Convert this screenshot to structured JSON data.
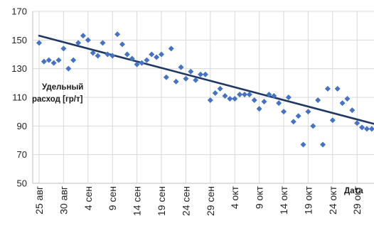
{
  "chart_data": {
    "type": "scatter",
    "title": "",
    "xlabel": "Дата",
    "ylabel": "Удельный расход [гр/т]",
    "ylim": [
      50,
      170
    ],
    "y_ticks": [
      "50",
      "70",
      "90",
      "110",
      "130",
      "150",
      "170"
    ],
    "x_ticks": [
      {
        "day": 0,
        "label": "25 авг"
      },
      {
        "day": 5,
        "label": "30 авг"
      },
      {
        "day": 10,
        "label": "4 сен"
      },
      {
        "day": 15,
        "label": "9 сен"
      },
      {
        "day": 20,
        "label": "14 сен"
      },
      {
        "day": 25,
        "label": "19 сен"
      },
      {
        "day": 30,
        "label": "24 сен"
      },
      {
        "day": 35,
        "label": "29 сен"
      },
      {
        "day": 40,
        "label": "4 окт"
      },
      {
        "day": 45,
        "label": "9 окт"
      },
      {
        "day": 50,
        "label": "14 окт"
      },
      {
        "day": 55,
        "label": "19 окт"
      },
      {
        "day": 60,
        "label": "24 окт"
      },
      {
        "day": 65,
        "label": "29 окт"
      }
    ],
    "grid": true,
    "marker_color": "#4472C4",
    "trend_color": "#1F3864",
    "series": [
      {
        "name": "",
        "points": [
          [
            0,
            148
          ],
          [
            1,
            135
          ],
          [
            2,
            136
          ],
          [
            3,
            134
          ],
          [
            4,
            136
          ],
          [
            5,
            144
          ],
          [
            6,
            130
          ],
          [
            7,
            136
          ],
          [
            8,
            148
          ],
          [
            9,
            153
          ],
          [
            10,
            150
          ],
          [
            11,
            141
          ],
          [
            12,
            139
          ],
          [
            13,
            148
          ],
          [
            14,
            140
          ],
          [
            15,
            139
          ],
          [
            16,
            154
          ],
          [
            17,
            147
          ],
          [
            18,
            140
          ],
          [
            19,
            137
          ],
          [
            20,
            133
          ],
          [
            21,
            134
          ],
          [
            22,
            136
          ],
          [
            23,
            140
          ],
          [
            24,
            138
          ],
          [
            25,
            140
          ],
          [
            26,
            124
          ],
          [
            27,
            144
          ],
          [
            28,
            121
          ],
          [
            29,
            131
          ],
          [
            30,
            123
          ],
          [
            31,
            128
          ],
          [
            32,
            122
          ],
          [
            33,
            126
          ],
          [
            34,
            126
          ],
          [
            35,
            108
          ],
          [
            36,
            113
          ],
          [
            37,
            116
          ],
          [
            38,
            111
          ],
          [
            39,
            109
          ],
          [
            40,
            109
          ],
          [
            41,
            112
          ],
          [
            42,
            112
          ],
          [
            43,
            112
          ],
          [
            44,
            108
          ],
          [
            45,
            102
          ],
          [
            46,
            107
          ],
          [
            47,
            112
          ],
          [
            48,
            111
          ],
          [
            49,
            106
          ],
          [
            50,
            100
          ],
          [
            51,
            110
          ],
          [
            52,
            93
          ],
          [
            53,
            97
          ],
          [
            54,
            77
          ],
          [
            55,
            100
          ],
          [
            56,
            90
          ],
          [
            57,
            108
          ],
          [
            58,
            77
          ],
          [
            59,
            116
          ],
          [
            60,
            94
          ],
          [
            61,
            116
          ],
          [
            62,
            106
          ],
          [
            63,
            109
          ],
          [
            64,
            101
          ],
          [
            65,
            92
          ],
          [
            66,
            89
          ],
          [
            67,
            88
          ],
          [
            68,
            88
          ]
        ]
      }
    ],
    "trendline": {
      "type": "linear",
      "from": [
        0,
        153
      ],
      "to": [
        69,
        91
      ]
    }
  }
}
